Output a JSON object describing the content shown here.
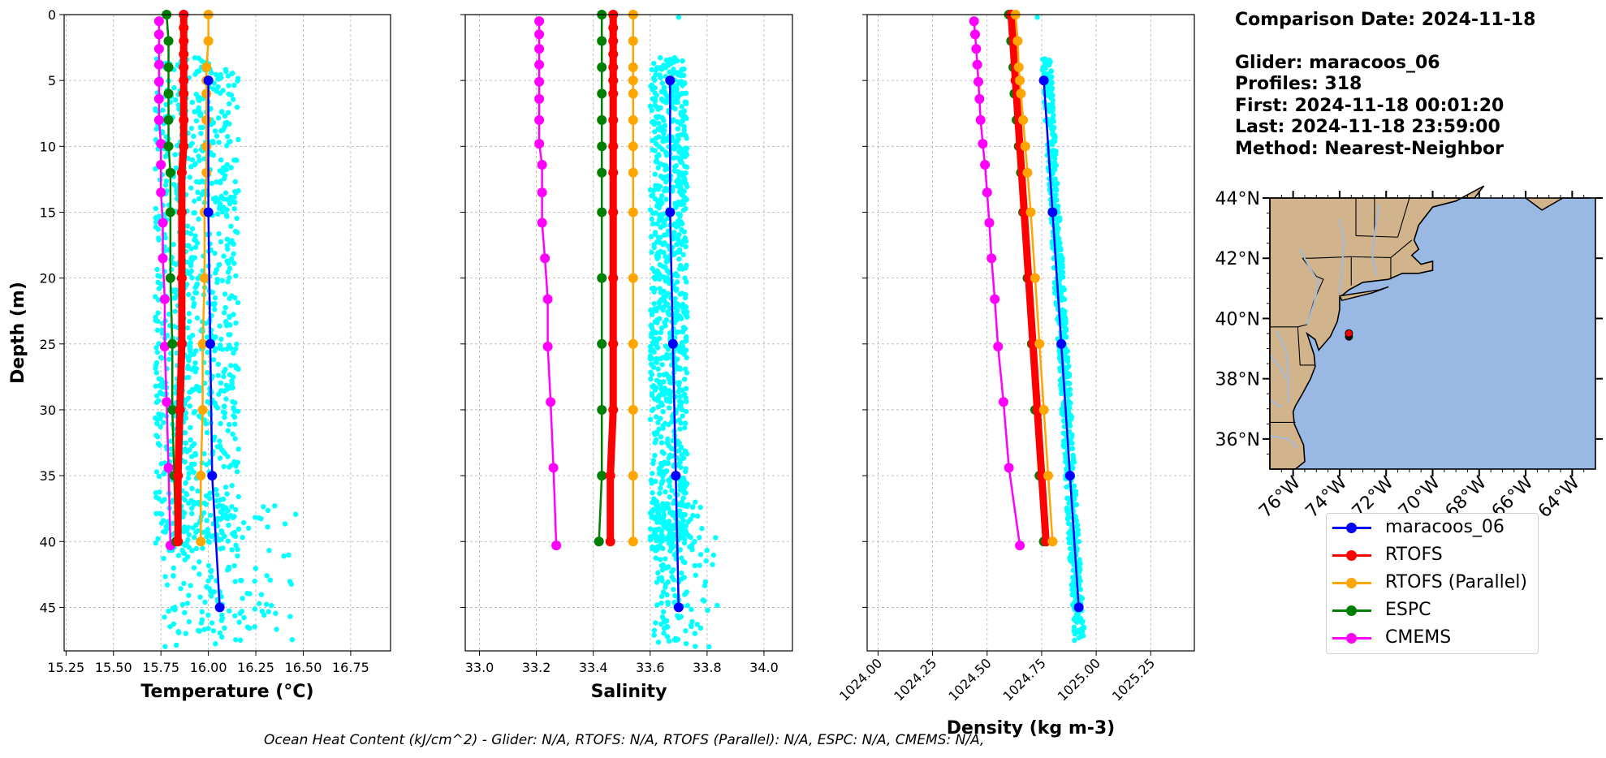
{
  "chart_data": [
    {
      "type": "line",
      "xlabel": "Temperature (°C)",
      "ylabel": "Depth (m)",
      "xlim": [
        15.24,
        16.96
      ],
      "ylim": [
        48.3,
        0
      ],
      "x_ticks": [
        "15.25",
        "15.50",
        "15.75",
        "16.00",
        "16.25",
        "16.50",
        "16.75"
      ],
      "x_tick_values": [
        15.25,
        15.5,
        15.75,
        16.0,
        16.25,
        16.5,
        16.75
      ],
      "y_ticks": [
        "0",
        "5",
        "10",
        "15",
        "20",
        "25",
        "30",
        "35",
        "40",
        "45"
      ],
      "y_tick_values": [
        0,
        5,
        10,
        15,
        20,
        25,
        30,
        35,
        40,
        45
      ],
      "grid": true,
      "glider_cloud": {
        "color": "#00ffff",
        "depth_range": [
          3,
          48
        ],
        "x_left": 15.72,
        "x_right": 16.16,
        "deep_spread": [
          16.1,
          16.48
        ]
      },
      "series": [
        {
          "name": "RTOFS",
          "color": "#ff0000",
          "line_width": 9,
          "depths": [
            0,
            1,
            2,
            3,
            4,
            5,
            6,
            8,
            10,
            12,
            15,
            20,
            25,
            30,
            35,
            40
          ],
          "values": [
            15.87,
            15.87,
            15.87,
            15.87,
            15.87,
            15.87,
            15.87,
            15.87,
            15.87,
            15.86,
            15.86,
            15.86,
            15.86,
            15.85,
            15.84,
            15.84
          ]
        },
        {
          "name": "RTOFS (Parallel)",
          "color": "#ffa500",
          "line_width": 2.5,
          "depths": [
            0,
            2,
            4,
            5,
            6,
            8,
            10,
            12,
            15,
            20,
            25,
            30,
            35,
            40
          ],
          "values": [
            16.0,
            16.0,
            15.99,
            15.99,
            15.99,
            15.99,
            15.99,
            15.99,
            15.98,
            15.98,
            15.97,
            15.97,
            15.96,
            15.96
          ]
        },
        {
          "name": "ESPC",
          "color": "#008000",
          "line_width": 2.5,
          "depths": [
            0,
            2,
            4,
            6,
            8,
            10,
            12,
            15,
            20,
            25,
            30,
            35,
            40
          ],
          "values": [
            15.78,
            15.79,
            15.79,
            15.79,
            15.79,
            15.79,
            15.8,
            15.8,
            15.8,
            15.81,
            15.81,
            15.82,
            15.83
          ]
        },
        {
          "name": "CMEMS",
          "color": "#ff00ff",
          "line_width": 2.5,
          "depths": [
            0.5,
            1.5,
            2.6,
            3.8,
            5.1,
            6.4,
            8.0,
            9.8,
            11.4,
            13.5,
            15.8,
            18.5,
            21.6,
            25.2,
            29.4,
            34.4,
            40.3
          ],
          "values": [
            15.74,
            15.74,
            15.74,
            15.74,
            15.74,
            15.74,
            15.74,
            15.75,
            15.75,
            15.75,
            15.76,
            15.76,
            15.77,
            15.77,
            15.78,
            15.79,
            15.8
          ]
        },
        {
          "name": "maracoos_06",
          "color": "#0000ff",
          "line_width": 2.5,
          "depths": [
            5,
            15,
            25,
            35,
            45
          ],
          "values": [
            16.0,
            16.0,
            16.01,
            16.02,
            16.06
          ]
        }
      ]
    },
    {
      "type": "line",
      "xlabel": "Salinity",
      "ylabel": "",
      "xlim": [
        32.95,
        34.1
      ],
      "ylim": [
        48.3,
        0
      ],
      "x_ticks": [
        "33.0",
        "33.2",
        "33.4",
        "33.6",
        "33.8",
        "34.0"
      ],
      "x_tick_values": [
        33.0,
        33.2,
        33.4,
        33.6,
        33.8,
        34.0
      ],
      "y_tick_values": [
        0,
        5,
        10,
        15,
        20,
        25,
        30,
        35,
        40,
        45
      ],
      "grid": true,
      "glider_cloud": {
        "color": "#00ffff",
        "depth_range": [
          3,
          48
        ],
        "x_left": 33.6,
        "x_right": 33.73,
        "deep_spread": [
          33.7,
          33.85
        ]
      },
      "series": [
        {
          "name": "RTOFS",
          "color": "#ff0000",
          "line_width": 9,
          "depths": [
            0,
            1,
            2,
            3,
            4,
            5,
            6,
            8,
            10,
            12,
            15,
            20,
            25,
            30,
            35,
            40
          ],
          "values": [
            33.47,
            33.47,
            33.47,
            33.47,
            33.47,
            33.47,
            33.47,
            33.47,
            33.47,
            33.47,
            33.47,
            33.47,
            33.47,
            33.47,
            33.46,
            33.46
          ]
        },
        {
          "name": "RTOFS (Parallel)",
          "color": "#ffa500",
          "line_width": 2.5,
          "depths": [
            0,
            2,
            4,
            5,
            6,
            8,
            10,
            12,
            15,
            20,
            25,
            30,
            35,
            40
          ],
          "values": [
            33.54,
            33.54,
            33.54,
            33.54,
            33.54,
            33.54,
            33.54,
            33.54,
            33.54,
            33.54,
            33.54,
            33.54,
            33.54,
            33.54
          ]
        },
        {
          "name": "ESPC",
          "color": "#008000",
          "line_width": 2.5,
          "depths": [
            0,
            2,
            4,
            6,
            8,
            10,
            12,
            15,
            20,
            25,
            30,
            35,
            40
          ],
          "values": [
            33.43,
            33.43,
            33.43,
            33.43,
            33.43,
            33.43,
            33.43,
            33.43,
            33.43,
            33.43,
            33.43,
            33.43,
            33.42
          ]
        },
        {
          "name": "CMEMS",
          "color": "#ff00ff",
          "line_width": 2.5,
          "depths": [
            0.5,
            1.5,
            2.6,
            3.8,
            5.1,
            6.4,
            8.0,
            9.8,
            11.4,
            13.5,
            15.8,
            18.5,
            21.6,
            25.2,
            29.4,
            34.4,
            40.3
          ],
          "values": [
            33.21,
            33.21,
            33.21,
            33.21,
            33.21,
            33.21,
            33.21,
            33.21,
            33.22,
            33.22,
            33.22,
            33.23,
            33.24,
            33.24,
            33.25,
            33.26,
            33.27
          ]
        },
        {
          "name": "maracoos_06",
          "color": "#0000ff",
          "line_width": 2.5,
          "depths": [
            5,
            15,
            25,
            35,
            45
          ],
          "values": [
            33.67,
            33.67,
            33.68,
            33.69,
            33.7
          ]
        }
      ]
    },
    {
      "type": "line",
      "xlabel": "Density (kg m-3)",
      "ylabel": "",
      "xlim": [
        1023.95,
        1025.45
      ],
      "ylim": [
        48.3,
        0
      ],
      "x_ticks": [
        "1024.00",
        "1024.25",
        "1024.50",
        "1024.75",
        "1025.00",
        "1025.25"
      ],
      "x_tick_values": [
        1024.0,
        1024.25,
        1024.5,
        1024.75,
        1025.0,
        1025.25
      ],
      "y_tick_values": [
        0,
        5,
        10,
        15,
        20,
        25,
        30,
        35,
        40,
        45
      ],
      "grid": true,
      "glider_cloud": {
        "color": "#00ffff",
        "density_slanted": true,
        "top": [
          1024.75,
          1024.79
        ],
        "bottom": [
          1024.9,
          1024.95
        ],
        "depth_range": [
          3,
          48
        ]
      },
      "series": [
        {
          "name": "RTOFS",
          "color": "#ff0000",
          "line_width": 9,
          "depths": [
            0,
            5,
            10,
            15,
            20,
            25,
            30,
            35,
            40
          ],
          "values": [
            1024.61,
            1024.63,
            1024.65,
            1024.67,
            1024.69,
            1024.71,
            1024.73,
            1024.75,
            1024.77
          ]
        },
        {
          "name": "RTOFS (Parallel)",
          "color": "#ffa500",
          "line_width": 2.5,
          "depths": [
            0,
            2,
            4,
            5,
            6,
            8,
            10,
            12,
            15,
            20,
            25,
            30,
            35,
            40
          ],
          "values": [
            1024.63,
            1024.64,
            1024.645,
            1024.65,
            1024.655,
            1024.665,
            1024.675,
            1024.685,
            1024.7,
            1024.72,
            1024.74,
            1024.76,
            1024.78,
            1024.8
          ]
        },
        {
          "name": "ESPC",
          "color": "#008000",
          "line_width": 2.5,
          "depths": [
            0,
            2,
            4,
            6,
            8,
            10,
            12,
            15,
            20,
            25,
            30,
            35,
            40
          ],
          "values": [
            1024.6,
            1024.61,
            1024.62,
            1024.625,
            1024.635,
            1024.645,
            1024.655,
            1024.665,
            1024.685,
            1024.705,
            1024.72,
            1024.74,
            1024.76
          ]
        },
        {
          "name": "CMEMS",
          "color": "#ff00ff",
          "line_width": 2.5,
          "depths": [
            0.5,
            1.5,
            2.6,
            3.8,
            5.1,
            6.4,
            8.0,
            9.8,
            11.4,
            13.5,
            15.8,
            18.5,
            21.6,
            25.2,
            29.4,
            34.4,
            40.3
          ],
          "values": [
            1024.44,
            1024.445,
            1024.45,
            1024.455,
            1024.46,
            1024.465,
            1024.47,
            1024.48,
            1024.49,
            1024.5,
            1024.51,
            1024.52,
            1024.535,
            1024.55,
            1024.575,
            1024.6,
            1024.65
          ]
        },
        {
          "name": "maracoos_06",
          "color": "#0000ff",
          "line_width": 2.5,
          "depths": [
            5,
            15,
            25,
            35,
            45
          ],
          "values": [
            1024.76,
            1024.8,
            1024.84,
            1024.88,
            1024.92
          ]
        }
      ]
    }
  ],
  "map": {
    "lat_ticks": [
      "44°N",
      "42°N",
      "40°N",
      "38°N",
      "36°N"
    ],
    "lat_tick_values": [
      44,
      42,
      40,
      38,
      36
    ],
    "lon_ticks": [
      "76°W",
      "74°W",
      "72°W",
      "70°W",
      "68°W",
      "66°W",
      "64°W"
    ],
    "lon_tick_values": [
      -76,
      -74,
      -72,
      -70,
      -68,
      -66,
      -64
    ],
    "lon_range": [
      -77,
      -63
    ],
    "lat_range": [
      35,
      44
    ],
    "land_color": "#d2b48c",
    "ocean_color": "#9ab8e4",
    "glider_position": {
      "lon": -73.6,
      "lat": 39.4
    }
  },
  "info": {
    "line1": "Comparison Date: 2024-11-18",
    "line2": "Glider: maracoos_06",
    "line3": "Profiles: 318",
    "line4": "First: 2024-11-18 00:01:20",
    "line5": "Last: 2024-11-18 23:59:00",
    "line6": "Method: Nearest-Neighbor"
  },
  "legend": [
    {
      "label": "maracoos_06",
      "color": "#0000ff"
    },
    {
      "label": "RTOFS",
      "color": "#ff0000"
    },
    {
      "label": "RTOFS (Parallel)",
      "color": "#ffa500"
    },
    {
      "label": "ESPC",
      "color": "#008000"
    },
    {
      "label": "CMEMS",
      "color": "#ff00ff"
    }
  ],
  "footer": "Ocean Heat Content (kJ/cm^2) - Glider: N/A,  RTOFS: N/A,  RTOFS (Parallel): N/A,  ESPC: N/A,  CMEMS: N/A,"
}
